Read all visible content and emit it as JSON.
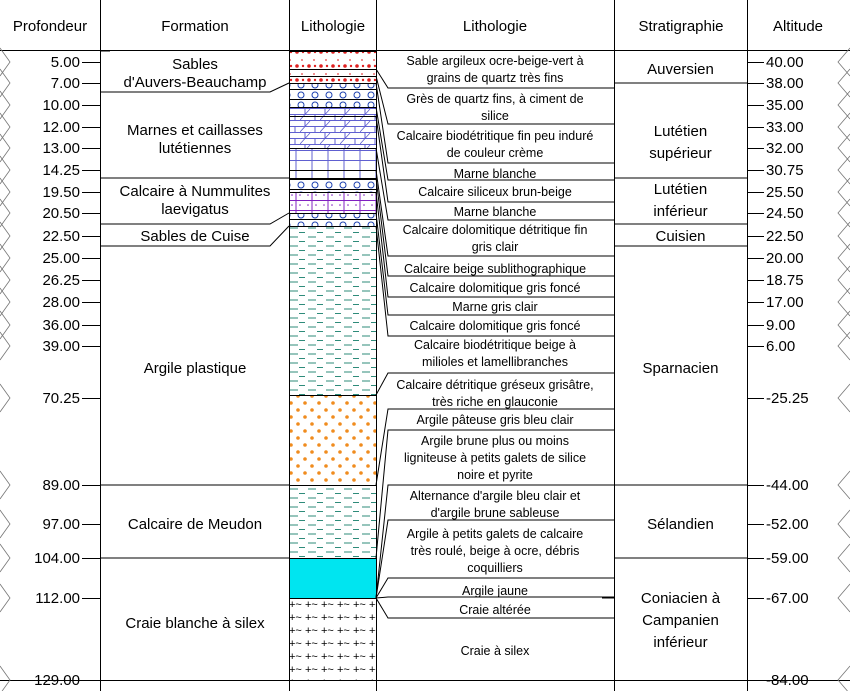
{
  "headers": {
    "profondeur": "Profondeur",
    "formation": "Formation",
    "lithologie_column": "Lithologie",
    "lithologie_desc": "Lithologie",
    "stratigraphie": "Stratigraphie",
    "altitude": "Altitude"
  },
  "depth_ticks": [
    "5.00",
    "7.00",
    "10.00",
    "12.00",
    "13.00",
    "14.25",
    "19.50",
    "20.50",
    "22.50",
    "25.00",
    "26.25",
    "28.00",
    "36.00",
    "39.00",
    "70.25",
    "89.00",
    "97.00",
    "104.00",
    "112.00",
    "129.00"
  ],
  "altitude_ticks": [
    "40.00",
    "38.00",
    "35.00",
    "33.00",
    "32.00",
    "30.75",
    "25.50",
    "24.50",
    "22.50",
    "20.00",
    "18.75",
    "17.00",
    "9.00",
    "6.00",
    "-25.25",
    "-44.00",
    "-52.00",
    "-59.00",
    "-67.00",
    "-84.00"
  ],
  "formations": [
    [
      "Sables",
      "d'Auvers-Beauchamp"
    ],
    [
      "Marnes et caillasses",
      "lutétiennes"
    ],
    [
      "Calcaire à Nummulites",
      "laevigatus"
    ],
    [
      "Sables de Cuise"
    ],
    [
      "Argile plastique"
    ],
    [
      "Calcaire de Meudon"
    ],
    [
      "Craie blanche à silex"
    ]
  ],
  "lithology_descriptions": [
    [
      "Sable argileux ocre-beige-vert à",
      "grains de quartz très fins"
    ],
    [
      "Grès de quartz fins, à ciment de",
      "silice"
    ],
    [
      "Calcaire biodétritique fin peu induré",
      "de couleur crème"
    ],
    [
      "Marne blanche"
    ],
    [
      "Calcaire siliceux brun-beige"
    ],
    [
      "Marne blanche"
    ],
    [
      "Calcaire dolomitique détritique fin",
      "gris clair"
    ],
    [
      "Calcaire beige sublithographique"
    ],
    [
      "Calcaire dolomitique gris foncé"
    ],
    [
      "Marne gris clair"
    ],
    [
      "Calcaire dolomitique gris foncé"
    ],
    [
      "Calcaire biodétritique beige à",
      "milioles et lamellibranches"
    ],
    [
      "Calcaire détritique gréseux grisâtre,",
      "très riche en glauconie"
    ],
    [
      "Argile pâteuse gris bleu clair"
    ],
    [
      "Argile brune plus ou moins",
      "ligniteuse à petits galets de silice",
      "noire et pyrite"
    ],
    [
      "Alternance d'argile bleu clair et",
      "d'argile brune sableuse"
    ],
    [
      "Argile à petits galets de calcaire",
      "très roulé, beige à ocre, débris",
      "coquilliers"
    ],
    [
      "Argile jaune"
    ],
    [
      "Craie altérée"
    ],
    [
      "Craie à silex"
    ]
  ],
  "stratigraphy": [
    [
      "Auversien"
    ],
    [
      "Lutétien",
      "supérieur"
    ],
    [
      "Lutétien",
      "inférieur"
    ],
    [
      "Cuisien"
    ],
    [
      "Sparnacien"
    ],
    [
      "Sélandien"
    ],
    [
      "Coniacien à",
      "Campanien",
      "inférieur"
    ]
  ],
  "lithology_patterns": [
    "red sand dots",
    "blue shell symbols",
    "brick limestone",
    "white marl",
    "blue shell symbols",
    "purple marl",
    "green clay dashes",
    "orange clay dots",
    "green clay dashes",
    "cyan clay",
    "blue chalk with flint"
  ],
  "colors": {
    "clay_green": "#2e8b7a",
    "sand_red": "#e02020",
    "limestone_blue": "#6060d0",
    "marl_purple": "#8020c0",
    "orange_clay": "#f08c1e",
    "cyan_clay": "#00e5f0",
    "chalk_blue": "#1c7cc0"
  }
}
